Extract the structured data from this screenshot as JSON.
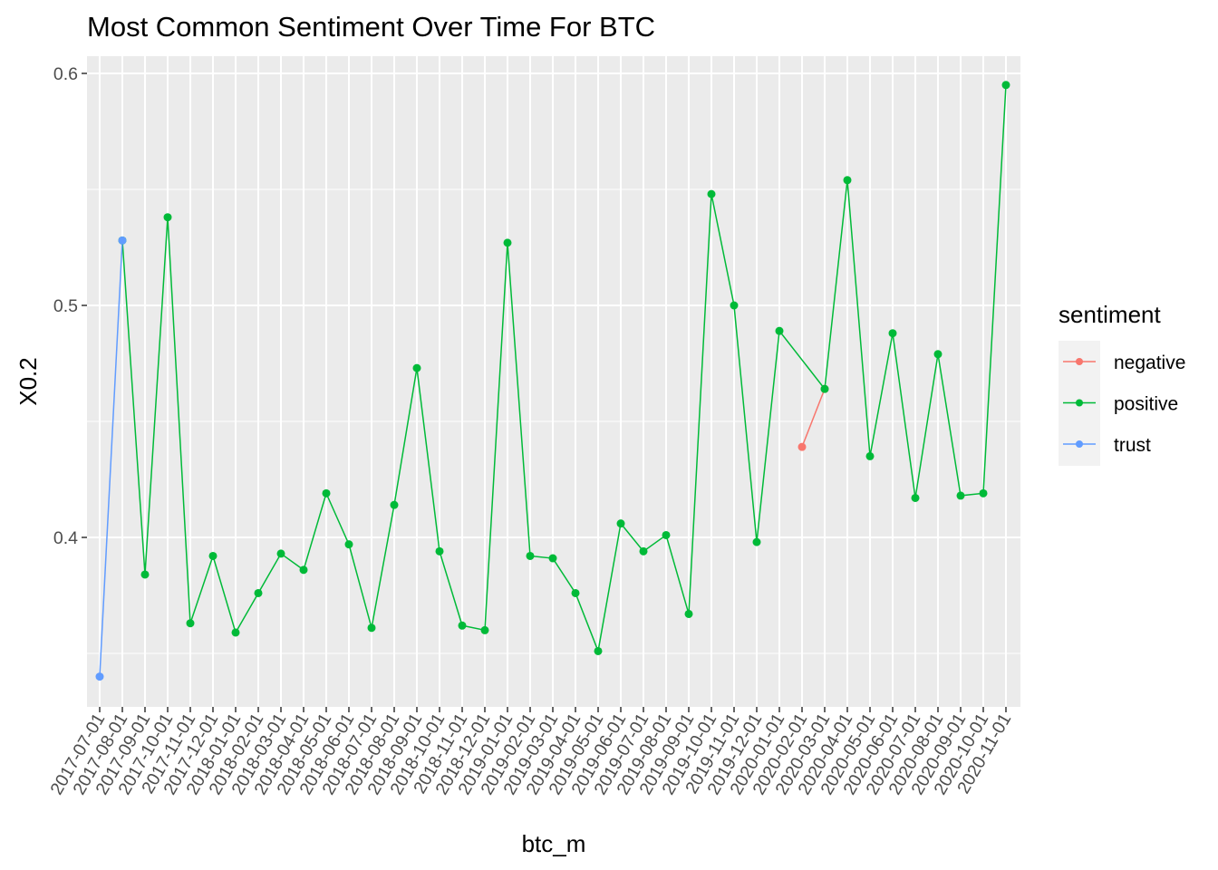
{
  "chart_data": {
    "type": "line",
    "title": "Most Common Sentiment Over Time For BTC",
    "xlabel": "btc_m",
    "ylabel": "X0.2",
    "ylim": [
      0.33,
      0.61
    ],
    "yticks": [
      "0.4",
      "0.5",
      "0.6"
    ],
    "ytick_values": [
      0.4,
      0.5,
      0.6
    ],
    "grid": true,
    "legend_title": "sentiment",
    "legend_position": "right",
    "categories": [
      "2017-07-01",
      "2017-08-01",
      "2017-09-01",
      "2017-10-01",
      "2017-11-01",
      "2017-12-01",
      "2018-01-01",
      "2018-02-01",
      "2018-03-01",
      "2018-04-01",
      "2018-05-01",
      "2018-06-01",
      "2018-07-01",
      "2018-08-01",
      "2018-09-01",
      "2018-10-01",
      "2018-11-01",
      "2018-12-01",
      "2019-01-01",
      "2019-02-01",
      "2019-03-01",
      "2019-04-01",
      "2019-05-01",
      "2019-06-01",
      "2019-07-01",
      "2019-08-01",
      "2019-09-01",
      "2019-10-01",
      "2019-11-01",
      "2019-12-01",
      "2020-01-01",
      "2020-02-01",
      "2020-03-01",
      "2020-04-01",
      "2020-05-01",
      "2020-06-01",
      "2020-07-01",
      "2020-08-01",
      "2020-09-01",
      "2020-10-01",
      "2020-11-01"
    ],
    "series": [
      {
        "name": "negative",
        "color": "#F8766D",
        "points": [
          {
            "x": "2020-02-01",
            "y": 0.439
          },
          {
            "x": "2020-03-01",
            "y": 0.464
          }
        ]
      },
      {
        "name": "positive",
        "color": "#00BA38",
        "points": [
          {
            "x": "2017-08-01",
            "y": 0.528
          },
          {
            "x": "2017-09-01",
            "y": 0.384
          },
          {
            "x": "2017-10-01",
            "y": 0.538
          },
          {
            "x": "2017-11-01",
            "y": 0.363
          },
          {
            "x": "2017-12-01",
            "y": 0.392
          },
          {
            "x": "2018-01-01",
            "y": 0.359
          },
          {
            "x": "2018-02-01",
            "y": 0.376
          },
          {
            "x": "2018-03-01",
            "y": 0.393
          },
          {
            "x": "2018-04-01",
            "y": 0.386
          },
          {
            "x": "2018-05-01",
            "y": 0.419
          },
          {
            "x": "2018-06-01",
            "y": 0.397
          },
          {
            "x": "2018-07-01",
            "y": 0.361
          },
          {
            "x": "2018-08-01",
            "y": 0.414
          },
          {
            "x": "2018-09-01",
            "y": 0.473
          },
          {
            "x": "2018-10-01",
            "y": 0.394
          },
          {
            "x": "2018-11-01",
            "y": 0.362
          },
          {
            "x": "2018-12-01",
            "y": 0.36
          },
          {
            "x": "2019-01-01",
            "y": 0.527
          },
          {
            "x": "2019-02-01",
            "y": 0.392
          },
          {
            "x": "2019-03-01",
            "y": 0.391
          },
          {
            "x": "2019-04-01",
            "y": 0.376
          },
          {
            "x": "2019-05-01",
            "y": 0.351
          },
          {
            "x": "2019-06-01",
            "y": 0.406
          },
          {
            "x": "2019-07-01",
            "y": 0.394
          },
          {
            "x": "2019-08-01",
            "y": 0.401
          },
          {
            "x": "2019-09-01",
            "y": 0.367
          },
          {
            "x": "2019-10-01",
            "y": 0.548
          },
          {
            "x": "2019-11-01",
            "y": 0.5
          },
          {
            "x": "2019-12-01",
            "y": 0.398
          },
          {
            "x": "2020-01-01",
            "y": 0.489
          },
          {
            "x": "2020-03-01",
            "y": 0.464
          },
          {
            "x": "2020-04-01",
            "y": 0.554
          },
          {
            "x": "2020-05-01",
            "y": 0.435
          },
          {
            "x": "2020-06-01",
            "y": 0.488
          },
          {
            "x": "2020-07-01",
            "y": 0.417
          },
          {
            "x": "2020-08-01",
            "y": 0.479
          },
          {
            "x": "2020-09-01",
            "y": 0.418
          },
          {
            "x": "2020-10-01",
            "y": 0.419
          },
          {
            "x": "2020-11-01",
            "y": 0.595
          }
        ]
      },
      {
        "name": "trust",
        "color": "#619CFF",
        "points": [
          {
            "x": "2017-07-01",
            "y": 0.34
          },
          {
            "x": "2017-08-01",
            "y": 0.528
          }
        ]
      }
    ],
    "panel_background": "#EBEBEB",
    "grid_color": "#FFFFFF"
  }
}
